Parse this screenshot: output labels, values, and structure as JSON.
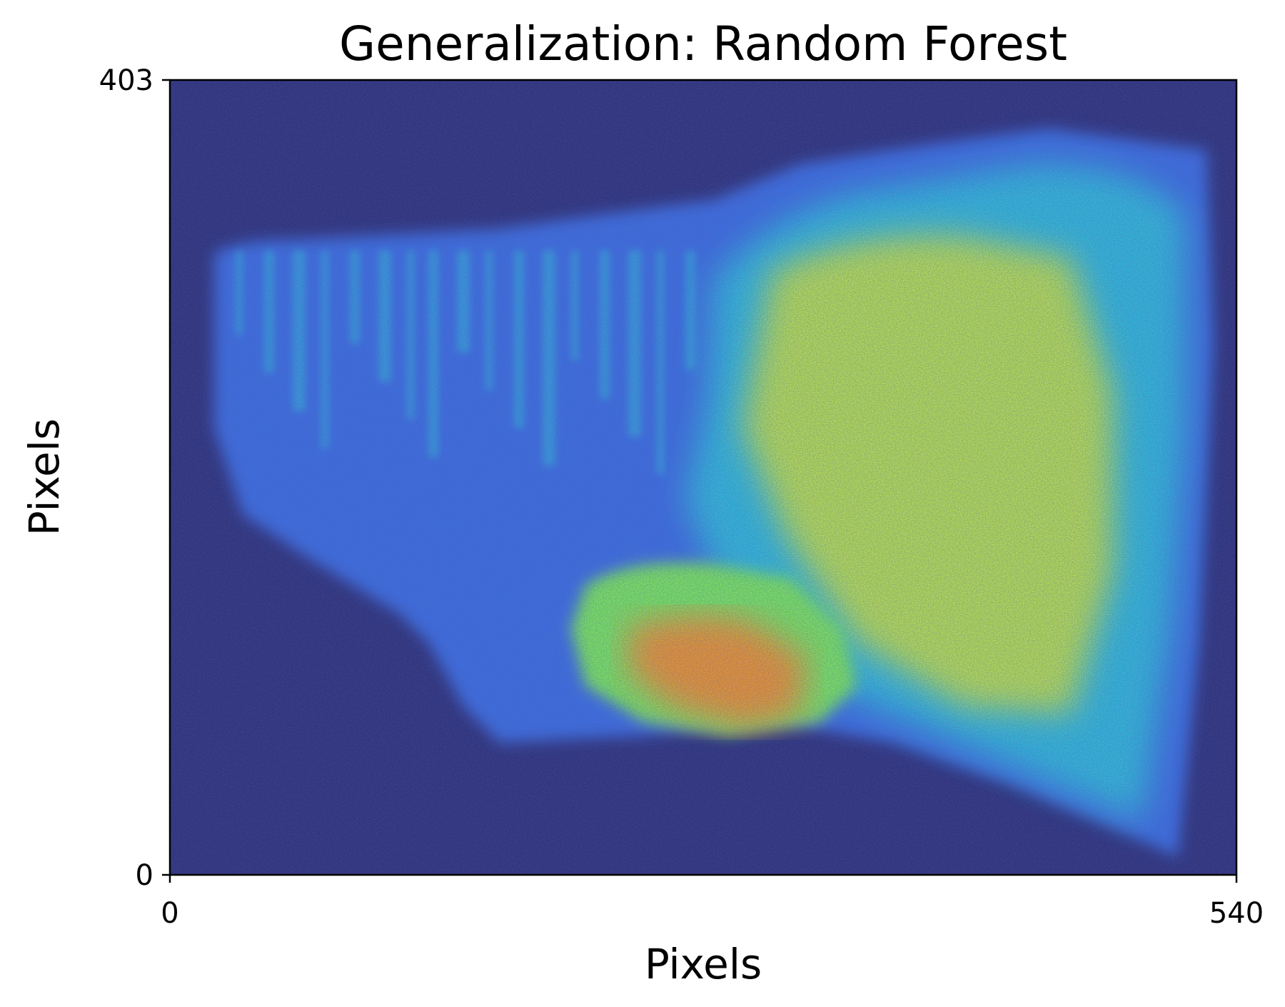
{
  "chart_data": {
    "type": "heatmap",
    "title": "Generalization: Random Forest",
    "xlabel": "Pixels",
    "ylabel": "Pixels",
    "xlim": [
      0,
      540
    ],
    "ylim": [
      0,
      403
    ],
    "x_ticks": [
      "0",
      "540"
    ],
    "y_ticks": [
      "0",
      "403"
    ],
    "colormap": "turbo",
    "colorbar": false,
    "grid": false,
    "colors": {
      "background_low": "#2c2f78",
      "mid_blue": "#3a6fe8",
      "cyan": "#2fc5e0",
      "green": "#7ef05a",
      "yellow": "#d7f035",
      "orange": "#f59a2a",
      "red": "#d92a12"
    }
  }
}
